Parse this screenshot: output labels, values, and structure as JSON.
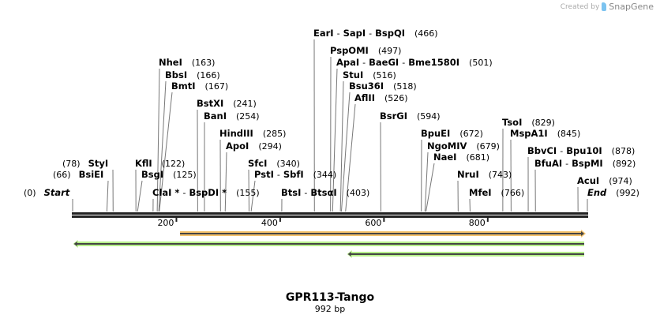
{
  "credit": {
    "prefix": "Created by",
    "brand": "SnapGene"
  },
  "sequence": {
    "name": "GPR113-Tango",
    "length_label": "992 bp",
    "length": 992
  },
  "ruler_ticks": [
    {
      "value": 200,
      "label": "200"
    },
    {
      "value": 400,
      "label": "400"
    },
    {
      "value": 600,
      "label": "600"
    },
    {
      "value": 800,
      "label": "800"
    }
  ],
  "sites": [
    {
      "names": [
        "Start"
      ],
      "pos": 0,
      "pos_label": "(0)",
      "italic": true
    },
    {
      "names": [
        "BsiEI"
      ],
      "pos": 66,
      "pos_label": "(66)"
    },
    {
      "names": [
        "StyI"
      ],
      "pos": 78,
      "pos_label": "(78)"
    },
    {
      "names": [
        "KflI"
      ],
      "pos": 122,
      "pos_label": "(122)"
    },
    {
      "names": [
        "BsgI"
      ],
      "pos": 125,
      "pos_label": "(125)"
    },
    {
      "names": [
        "ClaI *",
        "BspDI *"
      ],
      "pos": 155,
      "pos_label": "(155)"
    },
    {
      "names": [
        "NheI"
      ],
      "pos": 163,
      "pos_label": "(163)"
    },
    {
      "names": [
        "BbsI"
      ],
      "pos": 166,
      "pos_label": "(166)"
    },
    {
      "names": [
        "BmtI"
      ],
      "pos": 167,
      "pos_label": "(167)"
    },
    {
      "names": [
        "BstXI"
      ],
      "pos": 241,
      "pos_label": "(241)"
    },
    {
      "names": [
        "BanI"
      ],
      "pos": 254,
      "pos_label": "(254)"
    },
    {
      "names": [
        "HindIII"
      ],
      "pos": 285,
      "pos_label": "(285)"
    },
    {
      "names": [
        "ApoI"
      ],
      "pos": 294,
      "pos_label": "(294)"
    },
    {
      "names": [
        "SfcI"
      ],
      "pos": 340,
      "pos_label": "(340)"
    },
    {
      "names": [
        "PstI",
        "SbfI"
      ],
      "pos": 344,
      "pos_label": "(344)"
    },
    {
      "names": [
        "BtsI",
        "BtsαI"
      ],
      "pos": 403,
      "pos_label": "(403)"
    },
    {
      "names": [
        "EarI",
        "SapI",
        "BspQI"
      ],
      "pos": 466,
      "pos_label": "(466)"
    },
    {
      "names": [
        "PspOMI"
      ],
      "pos": 497,
      "pos_label": "(497)"
    },
    {
      "names": [
        "ApaI",
        "BaeGI",
        "Bme1580I"
      ],
      "pos": 501,
      "pos_label": "(501)"
    },
    {
      "names": [
        "StuI"
      ],
      "pos": 516,
      "pos_label": "(516)"
    },
    {
      "names": [
        "Bsu36I"
      ],
      "pos": 518,
      "pos_label": "(518)"
    },
    {
      "names": [
        "AflII"
      ],
      "pos": 526,
      "pos_label": "(526)"
    },
    {
      "names": [
        "BsrGI"
      ],
      "pos": 594,
      "pos_label": "(594)"
    },
    {
      "names": [
        "BpuEI"
      ],
      "pos": 672,
      "pos_label": "(672)"
    },
    {
      "names": [
        "NgoMIV"
      ],
      "pos": 679,
      "pos_label": "(679)"
    },
    {
      "names": [
        "NaeI"
      ],
      "pos": 681,
      "pos_label": "(681)"
    },
    {
      "names": [
        "NruI"
      ],
      "pos": 743,
      "pos_label": "(743)"
    },
    {
      "names": [
        "MfeI"
      ],
      "pos": 766,
      "pos_label": "(766)"
    },
    {
      "names": [
        "TsoI"
      ],
      "pos": 829,
      "pos_label": "(829)"
    },
    {
      "names": [
        "MspA1I"
      ],
      "pos": 845,
      "pos_label": "(845)"
    },
    {
      "names": [
        "BbvCI",
        "Bpu10I"
      ],
      "pos": 878,
      "pos_label": "(878)"
    },
    {
      "names": [
        "BfuAI",
        "BspMI"
      ],
      "pos": 892,
      "pos_label": "(892)"
    },
    {
      "names": [
        "AcuI"
      ],
      "pos": 974,
      "pos_label": "(974)"
    },
    {
      "names": [
        "End"
      ],
      "pos": 992,
      "pos_label": "(992)",
      "italic": true
    }
  ],
  "features": [
    {
      "start": 207,
      "end": 992,
      "direction": "forward",
      "color": "#f5c26b"
    },
    {
      "start": 1,
      "end": 992,
      "direction": "reverse",
      "color": "#b6ef8a"
    },
    {
      "start": 529,
      "end": 992,
      "direction": "reverse",
      "color": "#b6ef8a"
    }
  ],
  "colors": {
    "backbone": "#222222",
    "site_line": "#777777",
    "feature_stroke": "#444444"
  }
}
